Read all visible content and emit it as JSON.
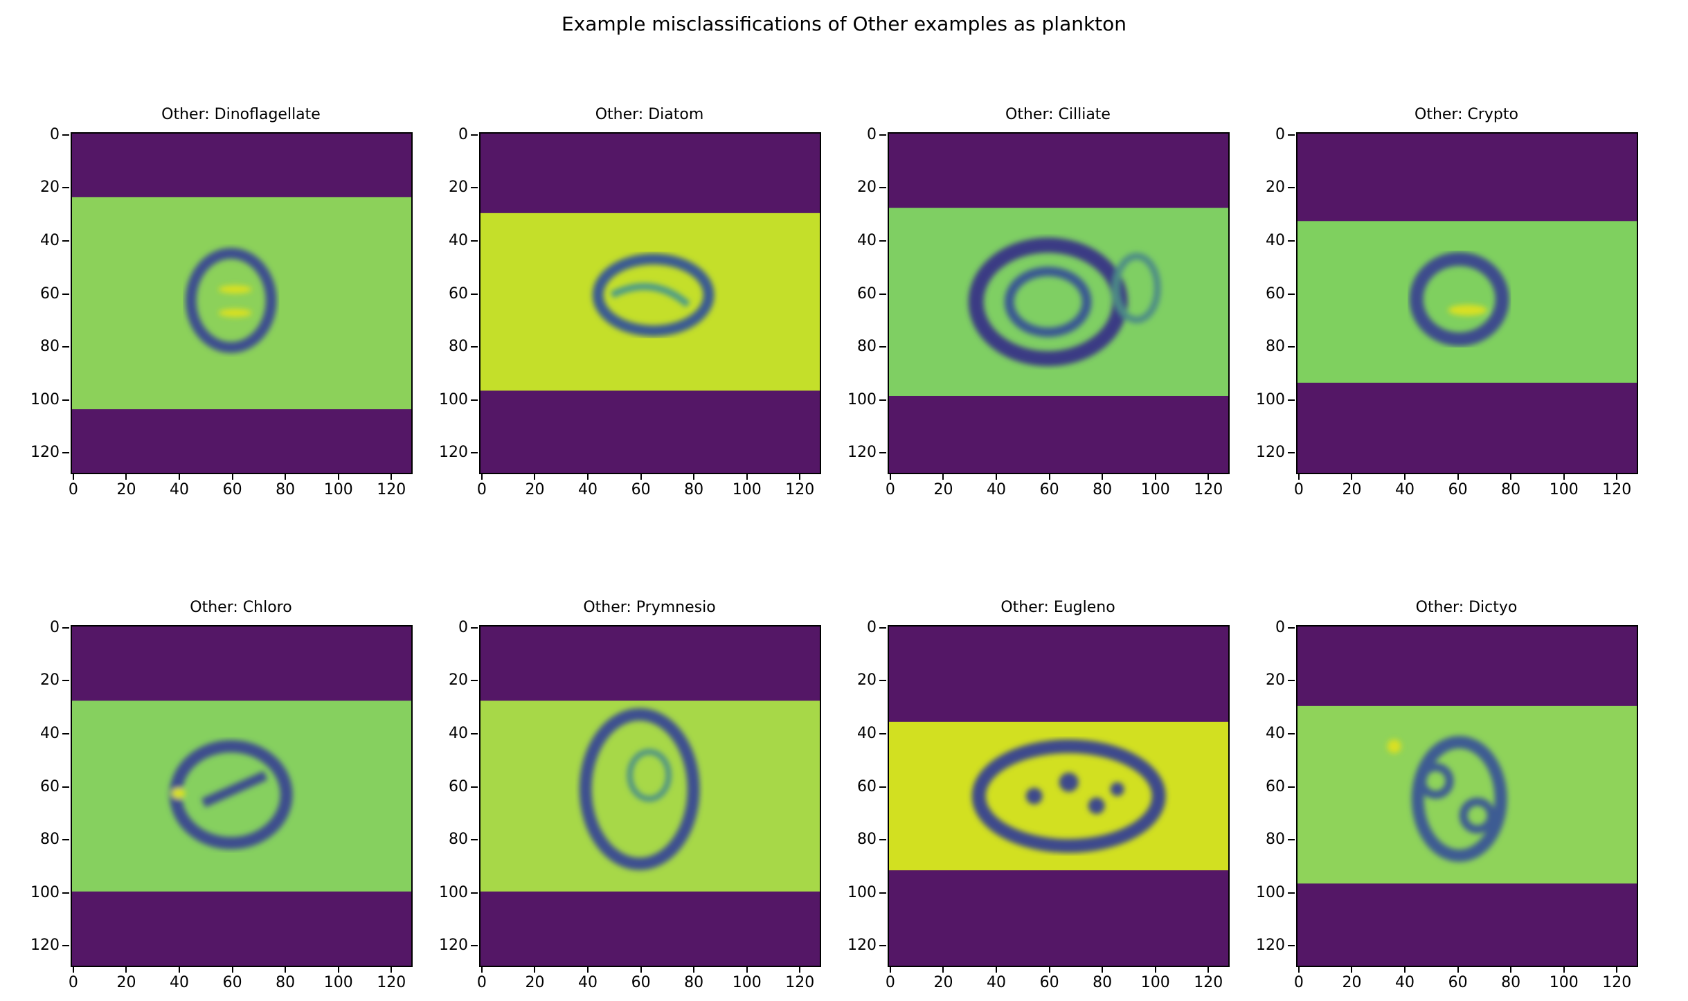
{
  "figure": {
    "title": "Example misclassifications of Other examples as plankton"
  },
  "axis": {
    "ticks": [
      0,
      20,
      40,
      60,
      80,
      100,
      120
    ],
    "extent": [
      0,
      127
    ]
  },
  "colors": {
    "background_pad": "#541766",
    "frame": "#000000"
  },
  "panels": [
    {
      "title": "Other: Dinoflagellate",
      "band_rows": [
        24,
        104
      ],
      "fill": "#8cd15a",
      "cell": "#3e4f8f",
      "cell_type": "double-oval"
    },
    {
      "title": "Other: Diatom",
      "band_rows": [
        30,
        97
      ],
      "fill": "#c4df2a",
      "cell": "#3b5b92",
      "cell_type": "oval"
    },
    {
      "title": "Other: Cilliate",
      "band_rows": [
        28,
        99
      ],
      "fill": "#7fcf63",
      "cell": "#3a3a84",
      "cell_type": "round-with-appendage"
    },
    {
      "title": "Other: Crypto",
      "band_rows": [
        33,
        94
      ],
      "fill": "#7fd05f",
      "cell": "#3e4b8d",
      "cell_type": "small-oval"
    },
    {
      "title": "Other: Chloro",
      "band_rows": [
        28,
        100
      ],
      "fill": "#86d05f",
      "cell": "#3e4d8e",
      "cell_type": "notched"
    },
    {
      "title": "Other: Prymnesio",
      "band_rows": [
        28,
        100
      ],
      "fill": "#a7d848",
      "cell": "#3d4f90",
      "cell_type": "tall-oval"
    },
    {
      "title": "Other: Eugleno",
      "band_rows": [
        36,
        92
      ],
      "fill": "#d2e021",
      "cell": "#3d4a8c",
      "cell_type": "spotted-oval"
    },
    {
      "title": "Other: Dictyo",
      "band_rows": [
        30,
        97
      ],
      "fill": "#8fd35a",
      "cell": "#3e5b93",
      "cell_type": "lobed"
    }
  ]
}
